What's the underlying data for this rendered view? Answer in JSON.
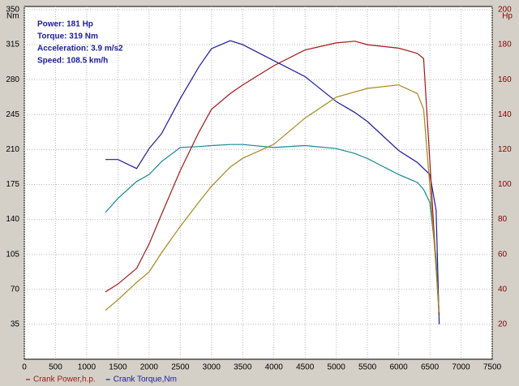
{
  "chart_data": {
    "type": "line",
    "y_label": "Nm",
    "y2_label": "Hp",
    "annotations": [
      "Power: 181 Hp",
      "Torque: 319 Nm",
      "Acceleration: 3.9 m/s2",
      "Speed: 108.5 km/h"
    ],
    "x": [
      1300,
      1500,
      1800,
      2000,
      2200,
      2500,
      2800,
      3000,
      3300,
      3500,
      4000,
      4500,
      5000,
      5300,
      5500,
      6000,
      6300,
      6400,
      6500,
      6600,
      6650
    ],
    "series": [
      {
        "name": "Crank Torque,Nm",
        "color": "#1a1aa0",
        "axis": "y",
        "values": [
          200,
          200,
          191,
          211,
          226,
          261,
          293,
          311,
          319,
          315,
          299,
          283,
          258,
          247,
          238,
          209,
          197,
          191,
          185,
          149,
          35
        ]
      },
      {
        "color": "#17879a",
        "axis": "y",
        "values": [
          147,
          161,
          178,
          185,
          198,
          212,
          213,
          214,
          215,
          215,
          212,
          214,
          211,
          206,
          201,
          185,
          177,
          170,
          157,
          100,
          43
        ]
      },
      {
        "name": "Crank Power,h.p.",
        "color": "#a01818",
        "axis": "y2",
        "values": [
          38.5,
          43,
          52,
          66,
          83,
          108,
          130,
          143,
          152,
          157,
          168,
          177,
          181,
          182,
          180,
          178,
          175,
          172,
          113,
          52,
          25
        ]
      },
      {
        "color": "#a8861c",
        "axis": "y2",
        "values": [
          28,
          34,
          44,
          50,
          61,
          76,
          90,
          99,
          110,
          115,
          123,
          138,
          150,
          153,
          155,
          157,
          152,
          143,
          99,
          52,
          27
        ]
      }
    ],
    "legend_order": [
      2,
      0
    ],
    "xlim": [
      0,
      7500
    ],
    "xticks": [
      0,
      500,
      1000,
      1500,
      2000,
      2500,
      3000,
      3500,
      4000,
      4500,
      5000,
      5500,
      6000,
      6500,
      7000,
      7500
    ],
    "ylim": [
      0,
      350
    ],
    "yticks": [
      35,
      70,
      105,
      140,
      175,
      210,
      245,
      280,
      315,
      350
    ],
    "y2lim": [
      0,
      200
    ],
    "y2ticks": [
      20,
      40,
      60,
      80,
      100,
      120,
      140,
      160,
      180,
      200
    ],
    "grid": true
  }
}
